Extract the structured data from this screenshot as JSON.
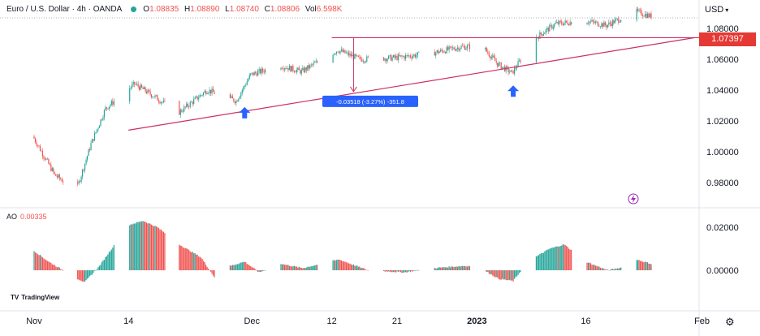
{
  "header": {
    "symbol": "Euro / U.S. Dollar · 4h · OANDA",
    "open_label": "O",
    "open": "1.08835",
    "high_label": "H",
    "high": "1.08890",
    "low_label": "L",
    "low": "1.08740",
    "close_label": "C",
    "close": "1.08806",
    "vol_label": "Vol",
    "vol": "6.598K"
  },
  "currency": "USD",
  "price_tag": "1.07397",
  "measure_label": "-0.03518 (-3.27%) -351.8",
  "ao": {
    "name": "AO",
    "value": "0.00335"
  },
  "branding": "TradingView",
  "colors": {
    "up": "#26a69a",
    "down": "#ef5350",
    "trendline": "#cc3060",
    "arrow": "#2962ff",
    "measure": "#2962ff"
  },
  "chart_data": [
    {
      "type": "candlestick",
      "title": "Euro / U.S. Dollar · 4h · OANDA",
      "y_ticks": [
        "1.08000",
        "1.06000",
        "1.04000",
        "1.02000",
        "1.00000",
        "0.98000"
      ],
      "x_ticks": [
        "Nov",
        "14",
        "Dec",
        "12",
        "21",
        "2023",
        "16",
        "Feb"
      ],
      "ylim": [
        0.962,
        1.098
      ],
      "price_path": [
        {
          "date": "2022-11-01",
          "price": 1.01
        },
        {
          "date": "2022-11-04",
          "price": 0.985
        },
        {
          "date": "2022-11-07",
          "price": 0.975
        },
        {
          "date": "2022-11-09",
          "price": 1.005
        },
        {
          "date": "2022-11-11",
          "price": 1.028
        },
        {
          "date": "2022-11-15",
          "price": 1.044
        },
        {
          "date": "2022-11-18",
          "price": 1.035
        },
        {
          "date": "2022-11-21",
          "price": 1.025
        },
        {
          "date": "2022-11-25",
          "price": 1.04
        },
        {
          "date": "2022-11-29",
          "price": 1.033
        },
        {
          "date": "2022-12-01",
          "price": 1.05
        },
        {
          "date": "2022-12-05",
          "price": 1.056
        },
        {
          "date": "2022-12-08",
          "price": 1.052
        },
        {
          "date": "2022-12-13",
          "price": 1.066
        },
        {
          "date": "2022-12-16",
          "price": 1.06
        },
        {
          "date": "2022-12-21",
          "price": 1.061
        },
        {
          "date": "2022-12-26",
          "price": 1.064
        },
        {
          "date": "2022-12-30",
          "price": 1.068
        },
        {
          "date": "2023-01-02",
          "price": 1.068
        },
        {
          "date": "2023-01-04",
          "price": 1.057
        },
        {
          "date": "2023-01-06",
          "price": 1.051
        },
        {
          "date": "2023-01-09",
          "price": 1.073
        },
        {
          "date": "2023-01-12",
          "price": 1.083
        },
        {
          "date": "2023-01-16",
          "price": 1.085
        },
        {
          "date": "2023-01-19",
          "price": 1.082
        },
        {
          "date": "2023-01-23",
          "price": 1.091
        },
        {
          "date": "2023-01-25",
          "price": 1.088
        }
      ],
      "trendline": [
        {
          "date": "2022-11-14",
          "price": 1.014
        },
        {
          "date": "2023-01-31",
          "price": 1.074
        }
      ],
      "resistance": {
        "from": "2022-12-12",
        "to": "2023-01-31",
        "price": 1.07397
      },
      "measure": {
        "date": "2022-12-15",
        "from": 1.074,
        "to": 1.039
      },
      "arrows": [
        {
          "date": "2022-11-30",
          "price": 1.029
        },
        {
          "date": "2023-01-06",
          "price": 1.043
        }
      ]
    },
    {
      "type": "bar",
      "title": "AO",
      "y_ticks": [
        "0.02000",
        "0.00000"
      ],
      "ylim": [
        -0.0075,
        0.028
      ],
      "ao_path": [
        {
          "date": "2022-11-01",
          "value": 0.009
        },
        {
          "date": "2022-11-03",
          "value": 0.004
        },
        {
          "date": "2022-11-07",
          "value": -0.004
        },
        {
          "date": "2022-11-08",
          "value": -0.0055
        },
        {
          "date": "2022-11-10",
          "value": 0.002
        },
        {
          "date": "2022-11-14",
          "value": 0.021
        },
        {
          "date": "2022-11-16",
          "value": 0.023
        },
        {
          "date": "2022-11-18",
          "value": 0.02
        },
        {
          "date": "2022-11-21",
          "value": 0.012
        },
        {
          "date": "2022-11-24",
          "value": 0.006
        },
        {
          "date": "2022-11-26",
          "value": -0.004
        },
        {
          "date": "2022-11-28",
          "value": 0.002
        },
        {
          "date": "2022-11-30",
          "value": 0.004
        },
        {
          "date": "2022-12-02",
          "value": -0.001
        },
        {
          "date": "2022-12-05",
          "value": 0.003
        },
        {
          "date": "2022-12-08",
          "value": 0.001
        },
        {
          "date": "2022-12-13",
          "value": 0.005
        },
        {
          "date": "2022-12-17",
          "value": 0.0
        },
        {
          "date": "2022-12-22",
          "value": -0.001
        },
        {
          "date": "2022-12-26",
          "value": 0.001
        },
        {
          "date": "2022-12-30",
          "value": 0.002
        },
        {
          "date": "2023-01-01",
          "value": 0.002
        },
        {
          "date": "2023-01-04",
          "value": -0.004
        },
        {
          "date": "2023-01-06",
          "value": -0.005
        },
        {
          "date": "2023-01-08",
          "value": 0.004
        },
        {
          "date": "2023-01-11",
          "value": 0.01
        },
        {
          "date": "2023-01-13",
          "value": 0.012
        },
        {
          "date": "2023-01-16",
          "value": 0.004
        },
        {
          "date": "2023-01-19",
          "value": 0.0
        },
        {
          "date": "2023-01-22",
          "value": 0.002
        },
        {
          "date": "2023-01-23",
          "value": 0.005
        },
        {
          "date": "2023-01-25",
          "value": 0.003
        }
      ]
    }
  ]
}
